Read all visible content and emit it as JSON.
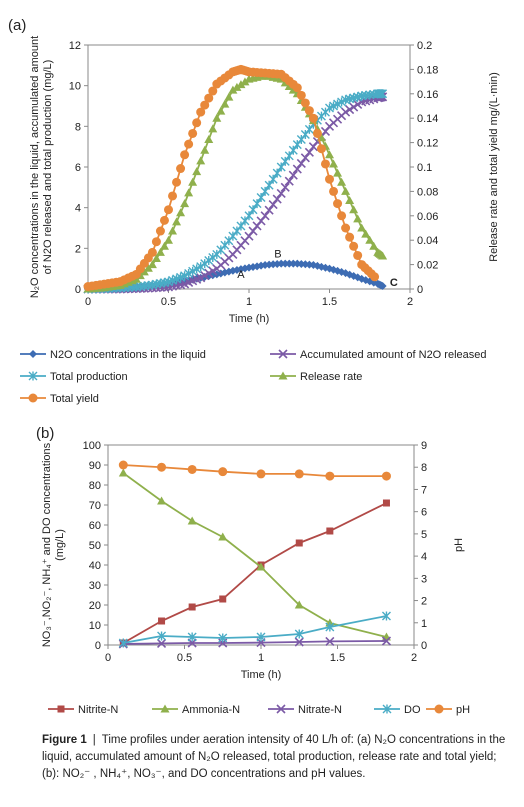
{
  "chart_data": [
    {
      "panel": "(a)",
      "type": "line",
      "xlabel": "Time   (h)",
      "ylabel_left": [
        "N₂O concentrations in the liquid, accumulated amount",
        "of N2O released and total production  (mg/L)"
      ],
      "ylabel_right": "Release rate and total yield   mg/(L·min)",
      "xlim": [
        0,
        2
      ],
      "xticks": [
        "0",
        "0.5",
        "1",
        "1.5",
        "2"
      ],
      "ylim_left": [
        0,
        12
      ],
      "yticks_left": [
        "0",
        "2",
        "4",
        "6",
        "8",
        "10",
        "12"
      ],
      "ylim_right": [
        0,
        0.2
      ],
      "yticks_right": [
        "0",
        "0.02",
        "0.04",
        "0.06",
        "0.08",
        "0.1",
        "0.12",
        "0.14",
        "0.16",
        "0.18",
        "0.2"
      ],
      "annotations": [
        "A",
        "B",
        "C"
      ],
      "legend_position": "bottom",
      "series": [
        {
          "name": "N2O concentrations in the liquid",
          "axis": "left",
          "marker": "diamond",
          "color": "#3d6cb3",
          "x": [
            0,
            0.1,
            0.2,
            0.3,
            0.4,
            0.5,
            0.6,
            0.7,
            0.8,
            0.9,
            1.0,
            1.1,
            1.2,
            1.3,
            1.4,
            1.5,
            1.6,
            1.7,
            1.8,
            1.83
          ],
          "y": [
            0,
            0.02,
            0.04,
            0.08,
            0.15,
            0.25,
            0.4,
            0.55,
            0.72,
            0.9,
            1.05,
            1.18,
            1.25,
            1.25,
            1.18,
            1.0,
            0.78,
            0.5,
            0.25,
            0.15
          ]
        },
        {
          "name": "Accumulated amount of N2O released",
          "axis": "left",
          "marker": "x",
          "color": "#7b5aa6",
          "x": [
            0,
            0.1,
            0.2,
            0.3,
            0.4,
            0.5,
            0.6,
            0.7,
            0.8,
            0.9,
            1.0,
            1.1,
            1.2,
            1.3,
            1.4,
            1.5,
            1.6,
            1.7,
            1.8,
            1.83
          ],
          "y": [
            0,
            0,
            0,
            0.02,
            0.05,
            0.1,
            0.25,
            0.55,
            1.0,
            1.7,
            2.6,
            3.6,
            4.7,
            5.9,
            7.0,
            8.0,
            8.7,
            9.2,
            9.4,
            9.45
          ]
        },
        {
          "name": "Total production",
          "axis": "left",
          "marker": "asterisk",
          "color": "#4aacc6",
          "x": [
            0,
            0.1,
            0.2,
            0.3,
            0.4,
            0.5,
            0.6,
            0.7,
            0.8,
            0.9,
            1.0,
            1.1,
            1.2,
            1.3,
            1.4,
            1.5,
            1.6,
            1.7,
            1.8,
            1.83
          ],
          "y": [
            0,
            0.02,
            0.05,
            0.1,
            0.2,
            0.35,
            0.65,
            1.1,
            1.7,
            2.6,
            3.6,
            4.8,
            6.0,
            7.1,
            8.1,
            8.9,
            9.3,
            9.5,
            9.6,
            9.6
          ]
        },
        {
          "name": "Release rate",
          "axis": "right",
          "marker": "triangle",
          "color": "#8fb04c",
          "x": [
            0,
            0.1,
            0.2,
            0.3,
            0.4,
            0.5,
            0.6,
            0.7,
            0.8,
            0.9,
            1.0,
            1.1,
            1.2,
            1.3,
            1.4,
            1.5,
            1.6,
            1.7,
            1.8,
            1.83
          ],
          "y": [
            0,
            0.001,
            0.003,
            0.008,
            0.02,
            0.04,
            0.07,
            0.105,
            0.14,
            0.163,
            0.172,
            0.175,
            0.172,
            0.16,
            0.138,
            0.11,
            0.08,
            0.05,
            0.03,
            0.027
          ]
        },
        {
          "name": "Total yield",
          "axis": "right",
          "marker": "circle",
          "color": "#e8883a",
          "x": [
            0,
            0.1,
            0.2,
            0.3,
            0.4,
            0.5,
            0.6,
            0.7,
            0.8,
            0.9,
            0.95,
            1.0,
            1.1,
            1.2,
            1.3,
            1.4,
            1.5,
            1.6,
            1.7,
            1.78
          ],
          "y": [
            0.002,
            0.004,
            0.006,
            0.012,
            0.03,
            0.065,
            0.11,
            0.145,
            0.168,
            0.178,
            0.18,
            0.178,
            0.177,
            0.176,
            0.165,
            0.14,
            0.09,
            0.05,
            0.02,
            0.01
          ]
        }
      ]
    },
    {
      "panel": "(b)",
      "type": "line",
      "xlabel": "Time   (h)",
      "ylabel_left": [
        "NO₃⁻,NO₂⁻, NH₄⁺ and DO concentrations",
        "(mg/L)"
      ],
      "ylabel_right": "pH",
      "xlim": [
        0,
        2
      ],
      "xticks": [
        "0",
        "0.5",
        "1",
        "1.5",
        "2"
      ],
      "ylim_left": [
        0,
        100
      ],
      "yticks_left": [
        "0",
        "10",
        "20",
        "30",
        "40",
        "50",
        "60",
        "70",
        "80",
        "90",
        "100"
      ],
      "ylim_right": [
        0,
        9
      ],
      "yticks_right": [
        "0",
        "1",
        "2",
        "3",
        "4",
        "5",
        "6",
        "7",
        "8",
        "9"
      ],
      "legend_position": "bottom",
      "series": [
        {
          "name": "Nitrite-N",
          "axis": "left",
          "marker": "square",
          "color": "#b14a47",
          "x": [
            0.1,
            0.35,
            0.55,
            0.75,
            1.0,
            1.25,
            1.45,
            1.82
          ],
          "y": [
            1,
            12,
            19,
            23,
            40,
            51,
            57,
            71
          ]
        },
        {
          "name": "Ammonia-N",
          "axis": "left",
          "marker": "triangle",
          "color": "#8fb04c",
          "x": [
            0.1,
            0.35,
            0.55,
            0.75,
            1.0,
            1.25,
            1.45,
            1.82
          ],
          "y": [
            86,
            72,
            62,
            54,
            39,
            20,
            11,
            4
          ]
        },
        {
          "name": "Nitrate-N",
          "axis": "left",
          "marker": "x",
          "color": "#7b5aa6",
          "x": [
            0.1,
            0.35,
            0.55,
            0.75,
            1.0,
            1.25,
            1.45,
            1.82
          ],
          "y": [
            0.5,
            0.8,
            1.0,
            1.0,
            1.2,
            1.5,
            1.8,
            2
          ]
        },
        {
          "name": "DO",
          "axis": "left",
          "marker": "asterisk",
          "color": "#4aacc6",
          "x": [
            0.1,
            0.35,
            0.55,
            0.75,
            1.0,
            1.25,
            1.45,
            1.82
          ],
          "y": [
            1,
            4.5,
            4,
            3.5,
            4,
            5.5,
            9,
            14.5
          ]
        },
        {
          "name": "pH",
          "axis": "right",
          "marker": "circle",
          "color": "#e8883a",
          "x": [
            0.1,
            0.35,
            0.55,
            0.75,
            1.0,
            1.25,
            1.45,
            1.82
          ],
          "y": [
            8.1,
            8.0,
            7.9,
            7.8,
            7.7,
            7.7,
            7.6,
            7.6
          ]
        }
      ]
    }
  ],
  "caption": {
    "label": "Figure 1",
    "separator": "|",
    "text": "Time profiles under aeration intensity of 40 L/h of: (a) N₂O concentrations in the liquid, accumulated amount of N₂O released, total production, release rate and total yield; (b): NO₂⁻ , NH₄⁺, NO₃⁻, and DO concentrations and pH values."
  }
}
